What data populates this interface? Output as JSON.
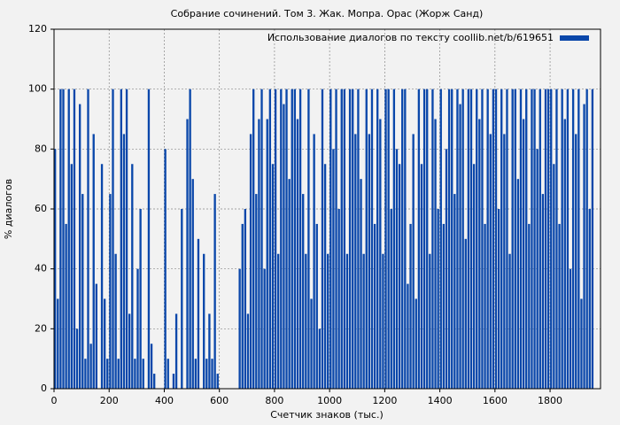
{
  "chart_data": {
    "type": "bar",
    "title": "Собрание сочинений. Том 3. Жак. Мопра. Орас (Жорж Санд)",
    "xlabel": "Счетчик знаков (тыс.)",
    "ylabel": "% диалогов",
    "series": [
      {
        "name": "Использование диалогов по тексту coollib.net/b/619651",
        "color": "#0a47aa",
        "values": [
          80,
          30,
          100,
          100,
          55,
          100,
          75,
          100,
          20,
          95,
          65,
          10,
          100,
          15,
          85,
          35,
          0,
          75,
          30,
          10,
          65,
          100,
          45,
          10,
          100,
          85,
          100,
          25,
          75,
          10,
          40,
          60,
          10,
          0,
          100,
          15,
          5,
          0,
          0,
          0,
          80,
          10,
          0,
          5,
          25,
          0,
          60,
          0,
          90,
          100,
          70,
          10,
          50,
          0,
          45,
          10,
          25,
          10,
          65,
          5,
          0,
          0,
          0,
          0,
          0,
          0,
          0,
          40,
          55,
          60,
          25,
          85,
          100,
          65,
          90,
          100,
          40,
          90,
          100,
          75,
          100,
          45,
          100,
          95,
          100,
          70,
          100,
          100,
          90,
          100,
          65,
          45,
          100,
          30,
          85,
          55,
          20,
          100,
          75,
          45,
          100,
          80,
          100,
          60,
          100,
          100,
          45,
          100,
          100,
          85,
          100,
          70,
          45,
          100,
          85,
          100,
          55,
          100,
          90,
          45,
          100,
          100,
          60,
          100,
          80,
          75,
          100,
          100,
          35,
          55,
          85,
          30,
          100,
          75,
          100,
          100,
          45,
          100,
          90,
          60,
          100,
          55,
          80,
          100,
          100,
          65,
          100,
          95,
          100,
          50,
          100,
          100,
          75,
          100,
          90,
          100,
          55,
          100,
          85,
          100,
          100,
          60,
          100,
          85,
          100,
          45,
          100,
          100,
          70,
          100,
          90,
          100,
          55,
          100,
          100,
          80,
          100,
          65,
          100,
          100,
          100,
          75,
          100,
          55,
          100,
          90,
          100,
          40,
          100,
          85,
          100,
          30,
          95,
          100,
          60,
          100
        ]
      }
    ],
    "x": [
      0,
      10,
      20,
      30,
      40,
      50,
      60,
      70,
      80,
      90,
      100,
      110,
      120,
      130,
      140,
      150,
      160,
      170,
      180,
      190,
      200,
      210,
      220,
      230,
      240,
      250,
      260,
      270,
      280,
      290,
      300,
      310,
      320,
      330,
      340,
      350,
      360,
      370,
      380,
      390,
      400,
      410,
      420,
      430,
      440,
      450,
      460,
      470,
      480,
      490,
      500,
      510,
      520,
      530,
      540,
      550,
      560,
      570,
      580,
      590,
      600,
      610,
      620,
      630,
      640,
      650,
      660,
      670,
      680,
      690,
      700,
      710,
      720,
      730,
      740,
      750,
      760,
      770,
      780,
      790,
      800,
      810,
      820,
      830,
      840,
      850,
      860,
      870,
      880,
      890,
      900,
      910,
      920,
      930,
      940,
      950,
      960,
      970,
      980,
      990,
      1000,
      1010,
      1020,
      1030,
      1040,
      1050,
      1060,
      1070,
      1080,
      1090,
      1100,
      1110,
      1120,
      1130,
      1140,
      1150,
      1160,
      1170,
      1180,
      1190,
      1200,
      1210,
      1220,
      1230,
      1240,
      1250,
      1260,
      1270,
      1280,
      1290,
      1300,
      1310,
      1320,
      1330,
      1340,
      1350,
      1360,
      1370,
      1380,
      1390,
      1400,
      1410,
      1420,
      1430,
      1440,
      1450,
      1460,
      1470,
      1480,
      1490,
      1500,
      1510,
      1520,
      1530,
      1540,
      1550,
      1560,
      1570,
      1580,
      1590,
      1600,
      1610,
      1620,
      1630,
      1640,
      1650,
      1660,
      1670,
      1680,
      1690,
      1700,
      1710,
      1720,
      1730,
      1740,
      1750,
      1760,
      1770,
      1780,
      1790,
      1800,
      1810,
      1820,
      1830,
      1840,
      1850,
      1860,
      1870,
      1880,
      1890,
      1900,
      1910,
      1920,
      1930,
      1940,
      1950
    ],
    "xlim": [
      0,
      1983
    ],
    "xticks": [
      0,
      200,
      400,
      600,
      800,
      1000,
      1200,
      1400,
      1600,
      1800
    ],
    "ylim": [
      0,
      120
    ],
    "yticks": [
      0,
      20,
      40,
      60,
      80,
      100,
      120
    ],
    "grid": true,
    "legend": "upper right"
  }
}
